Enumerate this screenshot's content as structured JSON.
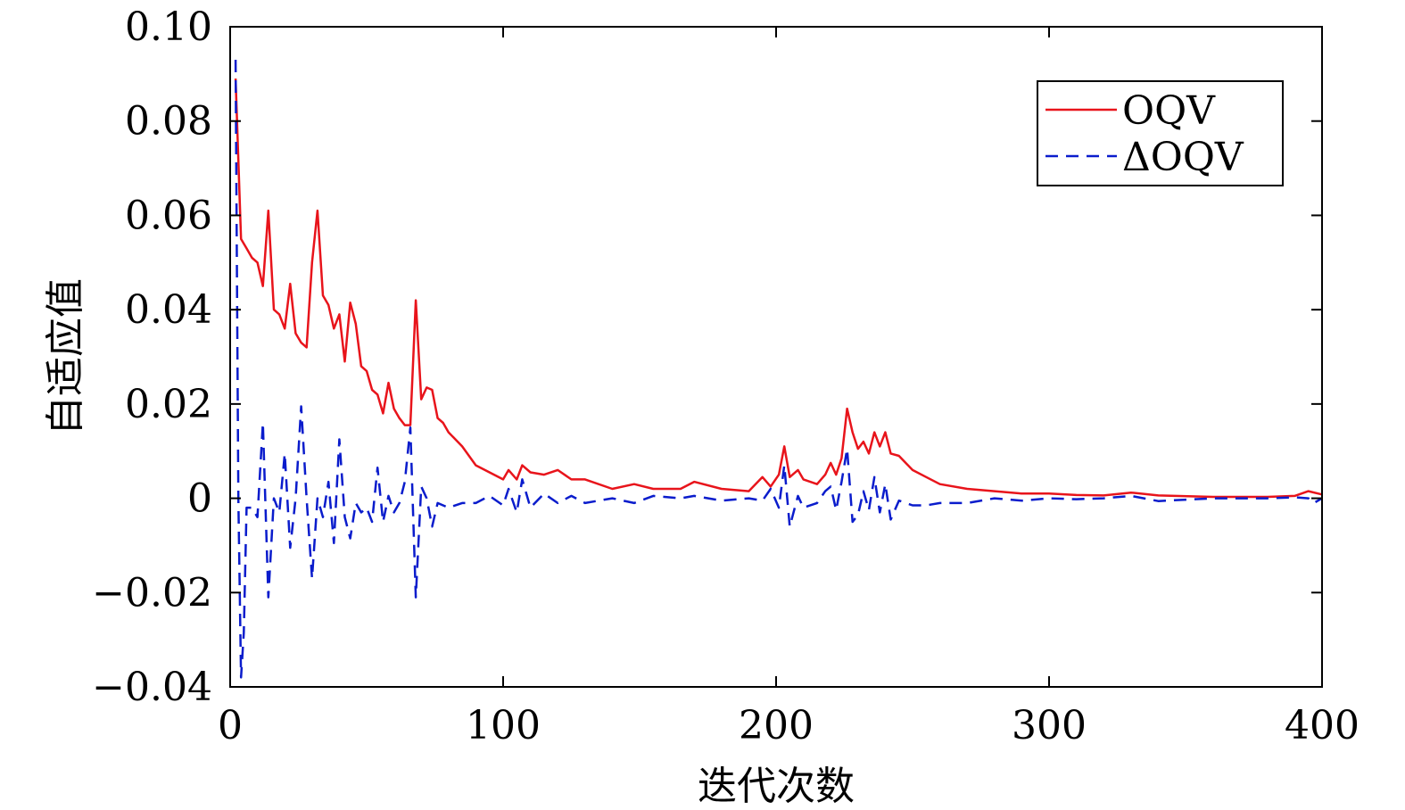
{
  "chart_data": {
    "type": "line",
    "xlabel": "迭代次数",
    "ylabel": "自适应值",
    "xlim": [
      0,
      400
    ],
    "ylim": [
      -0.04,
      0.1
    ],
    "x_ticks": [
      0,
      100,
      200,
      300,
      400
    ],
    "x_tick_labels": [
      "0",
      "100",
      "200",
      "300",
      "400"
    ],
    "y_ticks": [
      -0.04,
      -0.02,
      0,
      0.02,
      0.04,
      0.06,
      0.08,
      0.1
    ],
    "y_tick_labels": [
      "−0.04",
      "−0.02",
      "0",
      "0.02",
      "0.04",
      "0.06",
      "0.08",
      "0.10"
    ],
    "grid": false,
    "legend_position": "top-right",
    "series": [
      {
        "name": "OQV",
        "color": "#e8141b",
        "dash": "solid",
        "points": [
          [
            2,
            0.089
          ],
          [
            4,
            0.055
          ],
          [
            6,
            0.053
          ],
          [
            8,
            0.051
          ],
          [
            10,
            0.05
          ],
          [
            12,
            0.045
          ],
          [
            14,
            0.061
          ],
          [
            16,
            0.04
          ],
          [
            18,
            0.039
          ],
          [
            20,
            0.036
          ],
          [
            22,
            0.0455
          ],
          [
            24,
            0.035
          ],
          [
            26,
            0.033
          ],
          [
            28,
            0.032
          ],
          [
            30,
            0.05
          ],
          [
            32,
            0.061
          ],
          [
            34,
            0.043
          ],
          [
            36,
            0.041
          ],
          [
            38,
            0.036
          ],
          [
            40,
            0.039
          ],
          [
            42,
            0.029
          ],
          [
            44,
            0.0415
          ],
          [
            46,
            0.037
          ],
          [
            48,
            0.028
          ],
          [
            50,
            0.027
          ],
          [
            52,
            0.023
          ],
          [
            54,
            0.022
          ],
          [
            56,
            0.018
          ],
          [
            58,
            0.0245
          ],
          [
            60,
            0.019
          ],
          [
            62,
            0.017
          ],
          [
            64,
            0.0155
          ],
          [
            66,
            0.0155
          ],
          [
            68,
            0.042
          ],
          [
            70,
            0.021
          ],
          [
            72,
            0.0235
          ],
          [
            74,
            0.023
          ],
          [
            76,
            0.017
          ],
          [
            78,
            0.016
          ],
          [
            80,
            0.014
          ],
          [
            85,
            0.011
          ],
          [
            90,
            0.007
          ],
          [
            95,
            0.0055
          ],
          [
            100,
            0.004
          ],
          [
            102,
            0.006
          ],
          [
            105,
            0.004
          ],
          [
            107,
            0.007
          ],
          [
            110,
            0.0055
          ],
          [
            115,
            0.005
          ],
          [
            120,
            0.006
          ],
          [
            125,
            0.004
          ],
          [
            130,
            0.004
          ],
          [
            140,
            0.002
          ],
          [
            148,
            0.003
          ],
          [
            155,
            0.002
          ],
          [
            165,
            0.002
          ],
          [
            170,
            0.0035
          ],
          [
            180,
            0.002
          ],
          [
            190,
            0.0015
          ],
          [
            195,
            0.0045
          ],
          [
            198,
            0.0025
          ],
          [
            201,
            0.005
          ],
          [
            203,
            0.011
          ],
          [
            205,
            0.0045
          ],
          [
            208,
            0.006
          ],
          [
            210,
            0.004
          ],
          [
            215,
            0.003
          ],
          [
            218,
            0.005
          ],
          [
            220,
            0.0075
          ],
          [
            222,
            0.005
          ],
          [
            224,
            0.0085
          ],
          [
            226,
            0.019
          ],
          [
            228,
            0.014
          ],
          [
            230,
            0.0105
          ],
          [
            232,
            0.012
          ],
          [
            234,
            0.0095
          ],
          [
            236,
            0.014
          ],
          [
            238,
            0.011
          ],
          [
            240,
            0.014
          ],
          [
            242,
            0.0095
          ],
          [
            245,
            0.009
          ],
          [
            250,
            0.006
          ],
          [
            255,
            0.0045
          ],
          [
            260,
            0.003
          ],
          [
            270,
            0.002
          ],
          [
            280,
            0.0015
          ],
          [
            290,
            0.001
          ],
          [
            300,
            0.001
          ],
          [
            310,
            0.0007
          ],
          [
            320,
            0.0006
          ],
          [
            330,
            0.0012
          ],
          [
            340,
            0.0006
          ],
          [
            360,
            0.0003
          ],
          [
            380,
            0.0003
          ],
          [
            390,
            0.0005
          ],
          [
            395,
            0.0015
          ],
          [
            400,
            0.0008
          ]
        ]
      },
      {
        "name": "ΔOQV",
        "color": "#0a1ccc",
        "dash": "dashed",
        "points": [
          [
            2,
            0.093
          ],
          [
            3,
            0.0
          ],
          [
            4,
            -0.038
          ],
          [
            5,
            -0.0285
          ],
          [
            6,
            -0.002
          ],
          [
            8,
            -0.002
          ],
          [
            10,
            -0.004
          ],
          [
            12,
            0.016
          ],
          [
            14,
            -0.021
          ],
          [
            16,
            0.0
          ],
          [
            18,
            -0.003
          ],
          [
            20,
            0.0095
          ],
          [
            22,
            -0.0105
          ],
          [
            24,
            0.0
          ],
          [
            26,
            0.0195
          ],
          [
            28,
            0.0
          ],
          [
            30,
            -0.017
          ],
          [
            32,
            0.0
          ],
          [
            34,
            -0.004
          ],
          [
            36,
            0.0035
          ],
          [
            38,
            -0.0095
          ],
          [
            40,
            0.0125
          ],
          [
            42,
            -0.004
          ],
          [
            44,
            -0.0085
          ],
          [
            46,
            -0.001
          ],
          [
            48,
            -0.003
          ],
          [
            50,
            -0.002
          ],
          [
            52,
            -0.005
          ],
          [
            54,
            0.0065
          ],
          [
            56,
            -0.005
          ],
          [
            58,
            0.0005
          ],
          [
            60,
            -0.003
          ],
          [
            62,
            -0.001
          ],
          [
            64,
            0.0035
          ],
          [
            66,
            0.015
          ],
          [
            68,
            -0.021
          ],
          [
            70,
            0.0025
          ],
          [
            72,
            0.0
          ],
          [
            74,
            -0.006
          ],
          [
            76,
            -0.001
          ],
          [
            80,
            -0.002
          ],
          [
            85,
            -0.001
          ],
          [
            90,
            -0.001
          ],
          [
            95,
            0.0005
          ],
          [
            100,
            -0.0015
          ],
          [
            102,
            0.002
          ],
          [
            105,
            -0.003
          ],
          [
            107,
            0.004
          ],
          [
            110,
            -0.002
          ],
          [
            115,
            0.001
          ],
          [
            120,
            -0.001
          ],
          [
            125,
            0.0005
          ],
          [
            130,
            -0.001
          ],
          [
            140,
            0.0
          ],
          [
            148,
            -0.001
          ],
          [
            155,
            0.0005
          ],
          [
            165,
            0.0
          ],
          [
            170,
            0.0005
          ],
          [
            180,
            -0.0005
          ],
          [
            190,
            0.0
          ],
          [
            195,
            -0.0005
          ],
          [
            198,
            0.002
          ],
          [
            201,
            -0.002
          ],
          [
            203,
            0.007
          ],
          [
            205,
            -0.006
          ],
          [
            208,
            0.0005
          ],
          [
            210,
            -0.002
          ],
          [
            215,
            -0.001
          ],
          [
            218,
            0.0015
          ],
          [
            220,
            0.0025
          ],
          [
            222,
            -0.0025
          ],
          [
            224,
            0.0035
          ],
          [
            226,
            0.0105
          ],
          [
            228,
            -0.005
          ],
          [
            230,
            -0.0035
          ],
          [
            232,
            0.0015
          ],
          [
            234,
            -0.0025
          ],
          [
            236,
            0.0045
          ],
          [
            238,
            -0.003
          ],
          [
            240,
            0.003
          ],
          [
            242,
            -0.0045
          ],
          [
            245,
            -0.0005
          ],
          [
            250,
            -0.0015
          ],
          [
            255,
            -0.0015
          ],
          [
            260,
            -0.001
          ],
          [
            270,
            -0.001
          ],
          [
            280,
            0.0
          ],
          [
            290,
            -0.0005
          ],
          [
            300,
            0.0
          ],
          [
            310,
            -0.0002
          ],
          [
            320,
            0.0
          ],
          [
            330,
            0.0005
          ],
          [
            340,
            -0.0006
          ],
          [
            360,
            0.0
          ],
          [
            380,
            0.0
          ],
          [
            390,
            0.0002
          ],
          [
            395,
            0.0
          ],
          [
            397,
            -0.001
          ],
          [
            400,
            0.0
          ]
        ]
      }
    ]
  }
}
